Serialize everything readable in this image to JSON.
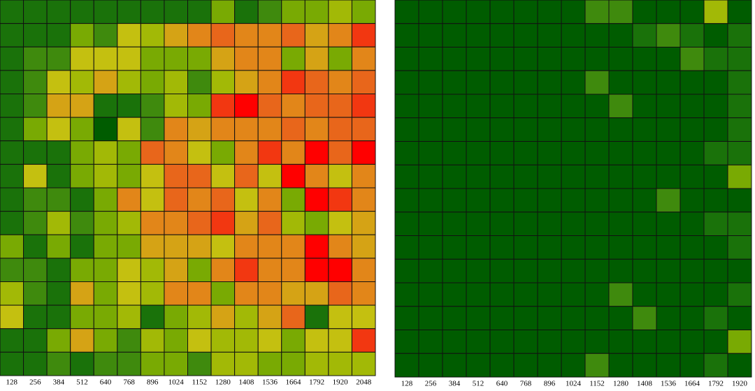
{
  "chart_data": [
    {
      "type": "heatmap",
      "categories": [
        128,
        256,
        384,
        512,
        640,
        768,
        896,
        1024,
        1152,
        1280,
        1408,
        1536,
        1664,
        1792,
        1920,
        2048
      ],
      "vlim": [
        0,
        10
      ],
      "colors": [
        "#005c00",
        "#2c8010",
        "#8cb400",
        "#c4c010",
        "#e09018",
        "#ea5c1c",
        "#ff0000"
      ],
      "values": [
        [
          1,
          1,
          1,
          1,
          1,
          1,
          1,
          1,
          1,
          3,
          1,
          2,
          3,
          3,
          4,
          3
        ],
        [
          1,
          1,
          1,
          3,
          2,
          5,
          4,
          6,
          7,
          8,
          7,
          7,
          8,
          6,
          7,
          9
        ],
        [
          1,
          2,
          2,
          5,
          5,
          5,
          3,
          3,
          3,
          6,
          7,
          7,
          3,
          6,
          3,
          7
        ],
        [
          1,
          2,
          5,
          4,
          6,
          4,
          3,
          4,
          2,
          4,
          6,
          7,
          9,
          8,
          7,
          8
        ],
        [
          1,
          2,
          6,
          6,
          1,
          1,
          2,
          4,
          3,
          9,
          10,
          8,
          7,
          8,
          8,
          9
        ],
        [
          1,
          3,
          5,
          3,
          0,
          5,
          2,
          7,
          6,
          7,
          7,
          7,
          8,
          7,
          8,
          8
        ],
        [
          1,
          1,
          1,
          3,
          4,
          3,
          8,
          7,
          5,
          3,
          7,
          9,
          7,
          10,
          8,
          10
        ],
        [
          1,
          5,
          1,
          3,
          4,
          3,
          5,
          8,
          8,
          5,
          8,
          5,
          10,
          7,
          5,
          7
        ],
        [
          1,
          2,
          2,
          1,
          3,
          7,
          5,
          8,
          7,
          8,
          5,
          7,
          3,
          10,
          9,
          7
        ],
        [
          1,
          2,
          4,
          2,
          3,
          4,
          7,
          7,
          8,
          9,
          6,
          8,
          4,
          3,
          5,
          6
        ],
        [
          3,
          1,
          3,
          1,
          3,
          3,
          6,
          6,
          6,
          5,
          7,
          7,
          7,
          10,
          7,
          6
        ],
        [
          2,
          2,
          1,
          3,
          3,
          5,
          4,
          6,
          3,
          7,
          9,
          7,
          7,
          10,
          10,
          7
        ],
        [
          4,
          2,
          1,
          6,
          3,
          5,
          4,
          7,
          7,
          3,
          7,
          7,
          6,
          6,
          8,
          7
        ],
        [
          5,
          1,
          1,
          3,
          3,
          4,
          1,
          3,
          4,
          6,
          4,
          6,
          8,
          1,
          5,
          5
        ],
        [
          1,
          1,
          3,
          6,
          3,
          2,
          4,
          3,
          5,
          4,
          4,
          5,
          3,
          5,
          5,
          9
        ],
        [
          1,
          1,
          2,
          1,
          2,
          2,
          3,
          3,
          2,
          4,
          4,
          3,
          3,
          4,
          4,
          4
        ]
      ]
    },
    {
      "type": "heatmap",
      "categories": [
        128,
        256,
        384,
        512,
        640,
        768,
        896,
        1024,
        1152,
        1280,
        1408,
        1536,
        1664,
        1792,
        1920
      ],
      "vlim": [
        0,
        10
      ],
      "colors": [
        "#005c00",
        "#2c8010",
        "#8cb400",
        "#c4c010",
        "#e09018",
        "#ea5c1c",
        "#ff0000"
      ],
      "values": [
        [
          0,
          0,
          0,
          0,
          0,
          0,
          0,
          0,
          2,
          2,
          0,
          0,
          0,
          4,
          0
        ],
        [
          0,
          0,
          0,
          0,
          0,
          0,
          0,
          0,
          0,
          0,
          1,
          2,
          1,
          0,
          1
        ],
        [
          0,
          0,
          0,
          0,
          0,
          0,
          0,
          0,
          0,
          0,
          0,
          0,
          2,
          1,
          1
        ],
        [
          0,
          0,
          0,
          0,
          0,
          0,
          0,
          0,
          2,
          0,
          0,
          0,
          0,
          0,
          1
        ],
        [
          0,
          0,
          0,
          0,
          0,
          0,
          0,
          0,
          0,
          2,
          0,
          0,
          0,
          0,
          1
        ],
        [
          0,
          0,
          0,
          0,
          0,
          0,
          0,
          0,
          0,
          0,
          0,
          0,
          0,
          0,
          1
        ],
        [
          0,
          0,
          0,
          0,
          0,
          0,
          0,
          0,
          0,
          0,
          0,
          0,
          0,
          1,
          1
        ],
        [
          0,
          0,
          0,
          0,
          0,
          0,
          0,
          0,
          0,
          0,
          0,
          0,
          0,
          0,
          3
        ],
        [
          0,
          0,
          0,
          0,
          0,
          0,
          0,
          0,
          0,
          0,
          0,
          2,
          0,
          0,
          0
        ],
        [
          0,
          0,
          0,
          0,
          0,
          0,
          0,
          0,
          0,
          0,
          0,
          0,
          0,
          1,
          1
        ],
        [
          0,
          0,
          0,
          0,
          0,
          0,
          0,
          0,
          0,
          0,
          0,
          0,
          0,
          0,
          1
        ],
        [
          0,
          0,
          0,
          0,
          0,
          0,
          0,
          0,
          0,
          0,
          0,
          0,
          0,
          0,
          0
        ],
        [
          0,
          0,
          0,
          0,
          0,
          0,
          0,
          0,
          0,
          2,
          0,
          0,
          0,
          0,
          1
        ],
        [
          0,
          0,
          0,
          0,
          0,
          0,
          0,
          0,
          0,
          0,
          2,
          0,
          0,
          1,
          0
        ],
        [
          0,
          0,
          0,
          0,
          0,
          0,
          0,
          0,
          0,
          0,
          0,
          0,
          0,
          0,
          3
        ],
        [
          0,
          0,
          0,
          0,
          0,
          0,
          0,
          0,
          2,
          0,
          0,
          0,
          0,
          1,
          0
        ]
      ]
    }
  ]
}
